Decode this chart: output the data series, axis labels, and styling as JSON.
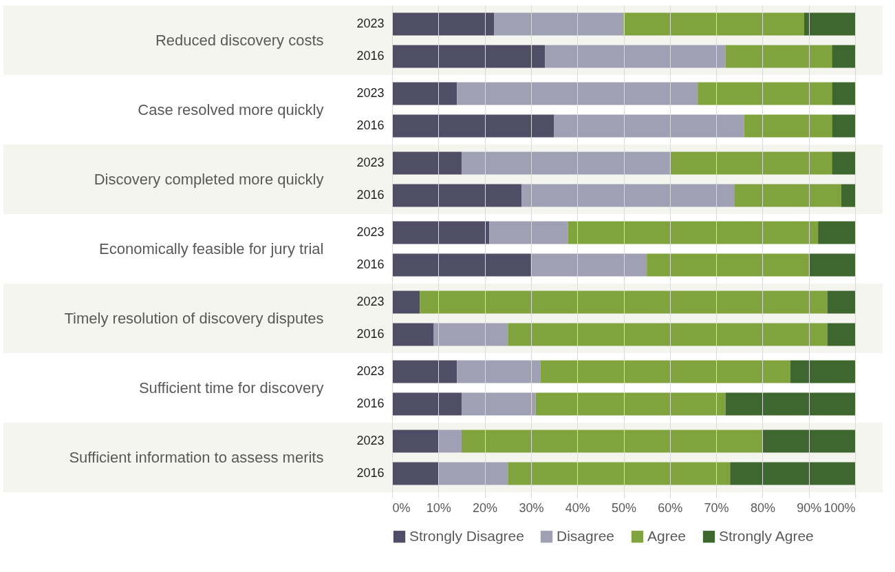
{
  "chart_data": [
    {
      "type": "bar",
      "orientation": "horizontal",
      "stacked": true,
      "ylabel": "Reduced discovery costs",
      "categories": [
        "2023",
        "2016"
      ],
      "xlim": [
        0,
        100
      ],
      "grid": "x",
      "tick_labels": "y",
      "xticks": [
        {
          "value": 0,
          "label": null
        },
        {
          "value": 10,
          "label": null
        },
        {
          "value": 20,
          "label": null
        },
        {
          "value": 30,
          "label": null
        },
        {
          "value": 40,
          "label": null
        },
        {
          "value": 50,
          "label": null
        },
        {
          "value": 60,
          "label": null
        },
        {
          "value": 70,
          "label": null
        },
        {
          "value": 80,
          "label": null
        },
        {
          "value": 90,
          "label": null
        },
        {
          "value": 100,
          "label": null
        }
      ],
      "series": [
        {
          "color": "#504e66",
          "values": [
            22,
            33
          ]
        },
        {
          "color": "#a0a0b4",
          "values": [
            28,
            39
          ]
        },
        {
          "color": "#80a33d",
          "values": [
            39,
            23
          ]
        },
        {
          "color": "#3e672f",
          "values": [
            11,
            5
          ]
        }
      ]
    },
    {
      "type": "bar",
      "orientation": "horizontal",
      "stacked": true,
      "ylabel": "Case resolved more quickly",
      "categories": [
        "2023",
        "2016"
      ],
      "xlim": [
        0,
        100
      ],
      "grid": "x",
      "tick_labels": "y",
      "xticks": [
        {
          "value": 0,
          "label": null
        },
        {
          "value": 10,
          "label": null
        },
        {
          "value": 20,
          "label": null
        },
        {
          "value": 30,
          "label": null
        },
        {
          "value": 40,
          "label": null
        },
        {
          "value": 50,
          "label": null
        },
        {
          "value": 60,
          "label": null
        },
        {
          "value": 70,
          "label": null
        },
        {
          "value": 80,
          "label": null
        },
        {
          "value": 90,
          "label": null
        },
        {
          "value": 100,
          "label": null
        }
      ],
      "series": [
        {
          "color": "#504e66",
          "values": [
            14,
            35
          ]
        },
        {
          "color": "#a0a0b4",
          "values": [
            52,
            41
          ]
        },
        {
          "color": "#80a33d",
          "values": [
            29,
            19
          ]
        },
        {
          "color": "#3e672f",
          "values": [
            5,
            5
          ]
        }
      ]
    },
    {
      "type": "bar",
      "orientation": "horizontal",
      "stacked": true,
      "ylabel": "Discovery completed more quickly",
      "categories": [
        "2023",
        "2016"
      ],
      "xlim": [
        0,
        100
      ],
      "grid": "x",
      "tick_labels": "y",
      "xticks": [
        {
          "value": 0,
          "label": null
        },
        {
          "value": 10,
          "label": null
        },
        {
          "value": 20,
          "label": null
        },
        {
          "value": 30,
          "label": null
        },
        {
          "value": 40,
          "label": null
        },
        {
          "value": 50,
          "label": null
        },
        {
          "value": 60,
          "label": null
        },
        {
          "value": 70,
          "label": null
        },
        {
          "value": 80,
          "label": null
        },
        {
          "value": 90,
          "label": null
        },
        {
          "value": 100,
          "label": null
        }
      ],
      "series": [
        {
          "color": "#504e66",
          "values": [
            15,
            28
          ]
        },
        {
          "color": "#a0a0b4",
          "values": [
            45,
            46
          ]
        },
        {
          "color": "#80a33d",
          "values": [
            35,
            23
          ]
        },
        {
          "color": "#3e672f",
          "values": [
            5,
            3
          ]
        }
      ]
    },
    {
      "type": "bar",
      "orientation": "horizontal",
      "stacked": true,
      "ylabel": "Economically feasible for jury trial",
      "categories": [
        "2023",
        "2016"
      ],
      "xlim": [
        0,
        100
      ],
      "grid": "x",
      "tick_labels": "y",
      "xticks": [
        {
          "value": 0,
          "label": null
        },
        {
          "value": 10,
          "label": null
        },
        {
          "value": 20,
          "label": null
        },
        {
          "value": 30,
          "label": null
        },
        {
          "value": 40,
          "label": null
        },
        {
          "value": 50,
          "label": null
        },
        {
          "value": 60,
          "label": null
        },
        {
          "value": 70,
          "label": null
        },
        {
          "value": 80,
          "label": null
        },
        {
          "value": 90,
          "label": null
        },
        {
          "value": 100,
          "label": null
        }
      ],
      "series": [
        {
          "color": "#504e66",
          "values": [
            21,
            30
          ]
        },
        {
          "color": "#a0a0b4",
          "values": [
            17,
            25
          ]
        },
        {
          "color": "#80a33d",
          "values": [
            54,
            35
          ]
        },
        {
          "color": "#3e672f",
          "values": [
            8,
            10
          ]
        }
      ]
    },
    {
      "type": "bar",
      "orientation": "horizontal",
      "stacked": true,
      "ylabel": "Timely resolution of discovery disputes",
      "categories": [
        "2023",
        "2016"
      ],
      "xlim": [
        0,
        100
      ],
      "grid": "x",
      "tick_labels": "y",
      "xticks": [
        {
          "value": 0,
          "label": null
        },
        {
          "value": 10,
          "label": null
        },
        {
          "value": 20,
          "label": null
        },
        {
          "value": 30,
          "label": null
        },
        {
          "value": 40,
          "label": null
        },
        {
          "value": 50,
          "label": null
        },
        {
          "value": 60,
          "label": null
        },
        {
          "value": 70,
          "label": null
        },
        {
          "value": 80,
          "label": null
        },
        {
          "value": 90,
          "label": null
        },
        {
          "value": 100,
          "label": null
        }
      ],
      "series": [
        {
          "color": "#504e66",
          "values": [
            6,
            9
          ]
        },
        {
          "color": "#a0a0b4",
          "values": [
            0,
            16
          ]
        },
        {
          "color": "#80a33d",
          "values": [
            88,
            69
          ]
        },
        {
          "color": "#3e672f",
          "values": [
            6,
            6
          ]
        }
      ]
    },
    {
      "type": "bar",
      "orientation": "horizontal",
      "stacked": true,
      "ylabel": "Sufficient time for discovery",
      "categories": [
        "2023",
        "2016"
      ],
      "xlim": [
        0,
        100
      ],
      "grid": "x",
      "tick_labels": "y",
      "xticks": [
        {
          "value": 0,
          "label": null
        },
        {
          "value": 10,
          "label": null
        },
        {
          "value": 20,
          "label": null
        },
        {
          "value": 30,
          "label": null
        },
        {
          "value": 40,
          "label": null
        },
        {
          "value": 50,
          "label": null
        },
        {
          "value": 60,
          "label": null
        },
        {
          "value": 70,
          "label": null
        },
        {
          "value": 80,
          "label": null
        },
        {
          "value": 90,
          "label": null
        },
        {
          "value": 100,
          "label": null
        }
      ],
      "series": [
        {
          "color": "#504e66",
          "values": [
            14,
            15
          ]
        },
        {
          "color": "#a0a0b4",
          "values": [
            18,
            16
          ]
        },
        {
          "color": "#80a33d",
          "values": [
            54,
            41
          ]
        },
        {
          "color": "#3e672f",
          "values": [
            14,
            28
          ]
        }
      ]
    },
    {
      "type": "bar",
      "orientation": "horizontal",
      "stacked": true,
      "ylabel": "Sufficient information to assess merits",
      "categories": [
        "2023",
        "2016"
      ],
      "xlim": [
        0,
        100
      ],
      "grid": "x",
      "legend": "bottom",
      "xticks": [
        {
          "value": 0,
          "label": "0%"
        },
        {
          "value": 10,
          "label": "10%"
        },
        {
          "value": 20,
          "label": "20%"
        },
        {
          "value": 30,
          "label": "30%"
        },
        {
          "value": 40,
          "label": "40%"
        },
        {
          "value": 50,
          "label": "50%"
        },
        {
          "value": 60,
          "label": "60%"
        },
        {
          "value": 70,
          "label": "70%"
        },
        {
          "value": 80,
          "label": "80%"
        },
        {
          "value": 90,
          "label": "90%"
        },
        {
          "value": 100,
          "label": "100%"
        }
      ],
      "series": [
        {
          "name": "Strongly Disagree",
          "color": "#504e66",
          "values": [
            10,
            10
          ]
        },
        {
          "name": "Disagree",
          "color": "#a0a0b4",
          "values": [
            5,
            15
          ]
        },
        {
          "name": "Agree",
          "color": "#80a33d",
          "values": [
            65,
            48
          ]
        },
        {
          "name": "Strongly Agree",
          "color": "#3e672f",
          "values": [
            20,
            27
          ]
        }
      ]
    }
  ]
}
